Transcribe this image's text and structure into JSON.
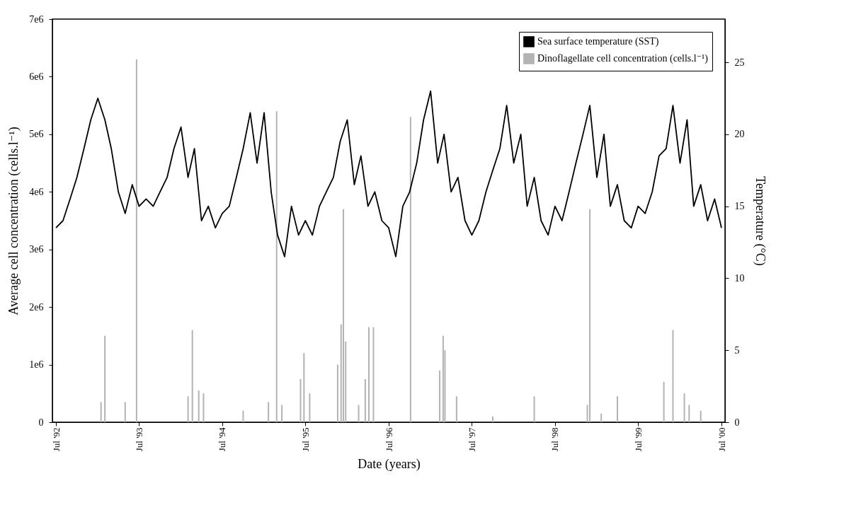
{
  "chart_data": {
    "type": "line",
    "xlabel": "Date (years)",
    "ylabel": "Average cell concentration (cells.l⁻¹)",
    "y2label": "Temperature (°C)",
    "xlim": [
      "1992-07-01",
      "2000-07-01"
    ],
    "xticks": [
      {
        "value": "1992-07-01",
        "label": "Jul '92"
      },
      {
        "value": "1993-07-01",
        "label": "Jul '93"
      },
      {
        "value": "1994-07-01",
        "label": "Jul '94"
      },
      {
        "value": "1995-07-01",
        "label": "Jul '95"
      },
      {
        "value": "1996-07-01",
        "label": "Jul '96"
      },
      {
        "value": "1997-07-01",
        "label": "Jul '97"
      },
      {
        "value": "1998-07-01",
        "label": "Jul '98"
      },
      {
        "value": "1999-07-01",
        "label": "Jul '99"
      },
      {
        "value": "2000-07-01",
        "label": "Jul '00"
      }
    ],
    "ylim": [
      0,
      7000000
    ],
    "yticks": [
      0,
      {
        "value": 1000000,
        "label": "1e6"
      },
      {
        "value": 2000000,
        "label": "2e6"
      },
      {
        "value": 3000000,
        "label": "3e6"
      },
      {
        "value": 4000000,
        "label": "4e6"
      },
      {
        "value": 5000000,
        "label": "5e6"
      },
      {
        "value": 6000000,
        "label": "6e6"
      },
      {
        "value": 7000000,
        "label": "7e6"
      }
    ],
    "y2lim": [
      0,
      28
    ],
    "y2ticks": [
      0,
      5,
      10,
      15,
      20,
      25
    ],
    "legend": "top right",
    "grid": false,
    "series": [
      {
        "name": "Sea surface temperature (SST)",
        "axis": "y2",
        "color": "#000000",
        "x": [
          "1992-07-01",
          "1992-08-01",
          "1992-09-01",
          "1992-10-01",
          "1992-11-01",
          "1992-12-01",
          "1993-01-01",
          "1993-02-01",
          "1993-03-01",
          "1993-04-01",
          "1993-05-01",
          "1993-06-01",
          "1993-07-01",
          "1993-08-01",
          "1993-09-01",
          "1993-10-01",
          "1993-11-01",
          "1993-12-01",
          "1994-01-01",
          "1994-02-01",
          "1994-03-01",
          "1994-04-01",
          "1994-05-01",
          "1994-06-01",
          "1994-07-01",
          "1994-08-01",
          "1994-09-01",
          "1994-10-01",
          "1994-11-01",
          "1994-12-01",
          "1995-01-01",
          "1995-02-01",
          "1995-03-01",
          "1995-04-01",
          "1995-05-01",
          "1995-06-01",
          "1995-07-01",
          "1995-08-01",
          "1995-09-01",
          "1995-10-01",
          "1995-11-01",
          "1995-12-01",
          "1996-01-01",
          "1996-02-01",
          "1996-03-01",
          "1996-04-01",
          "1996-05-01",
          "1996-06-01",
          "1996-07-01",
          "1996-08-01",
          "1996-09-01",
          "1996-10-01",
          "1996-11-01",
          "1996-12-01",
          "1997-01-01",
          "1997-02-01",
          "1997-03-01",
          "1997-04-01",
          "1997-05-01",
          "1997-06-01",
          "1997-07-01",
          "1997-08-01",
          "1997-09-01",
          "1997-10-01",
          "1997-11-01",
          "1997-12-01",
          "1998-01-01",
          "1998-02-01",
          "1998-03-01",
          "1998-04-01",
          "1998-05-01",
          "1998-06-01",
          "1998-07-01",
          "1998-08-01",
          "1998-09-01",
          "1998-10-01",
          "1998-11-01",
          "1998-12-01",
          "1999-01-01",
          "1999-02-01",
          "1999-03-01",
          "1999-04-01",
          "1999-05-01",
          "1999-06-01",
          "1999-07-01",
          "1999-08-01",
          "1999-09-01",
          "1999-10-01",
          "1999-11-01",
          "1999-12-01",
          "2000-01-01",
          "2000-02-01",
          "2000-03-01",
          "2000-04-01",
          "2000-05-01",
          "2000-06-01",
          "2000-07-01"
        ],
        "values": [
          13.5,
          14,
          15.5,
          17,
          19,
          21,
          22.5,
          21,
          19,
          16,
          14.5,
          16.5,
          15,
          15.5,
          15,
          16,
          17,
          19,
          20.5,
          17,
          19,
          14,
          15,
          13.5,
          14.5,
          15,
          17,
          19,
          21.5,
          18,
          21.5,
          16,
          13,
          11.5,
          15,
          13,
          14,
          13,
          15,
          16,
          17,
          19.5,
          21,
          16.5,
          18.5,
          15,
          16,
          14,
          13.5,
          11.5,
          15,
          16,
          18,
          21,
          23,
          18,
          20,
          16,
          17,
          14,
          13,
          14,
          16,
          17.5,
          19,
          22,
          18,
          20,
          15,
          17,
          14,
          13,
          15,
          14,
          16,
          18,
          20,
          22,
          17,
          20,
          15,
          16.5,
          14,
          13.5,
          15,
          14.5,
          16,
          18.5,
          19,
          22,
          18,
          21,
          15,
          16.5,
          14,
          15.5,
          13.5
        ]
      },
      {
        "name": "Dinoflagellate cell concentration (cells.l⁻¹)",
        "type": "bar",
        "color": "#b3b3b3",
        "x": [
          "1993-01-15",
          "1993-02-01",
          "1993-05-01",
          "1993-06-20",
          "1994-02-01",
          "1994-02-20",
          "1994-03-20",
          "1994-04-10",
          "1994-10-01",
          "1995-01-20",
          "1995-02-25",
          "1995-03-20",
          "1995-06-10",
          "1995-06-25",
          "1995-07-20",
          "1995-11-20",
          "1995-12-05",
          "1995-12-15",
          "1995-12-25",
          "1996-02-20",
          "1996-03-20",
          "1996-04-05",
          "1996-04-25",
          "1996-10-05",
          "1997-02-10",
          "1997-02-25",
          "1997-03-05",
          "1997-04-25",
          "1997-10-01",
          "1998-04-01",
          "1998-11-20",
          "1998-12-01",
          "1999-01-20",
          "1999-04-01",
          "1999-10-22",
          "1999-12-01",
          "2000-01-20",
          "2000-02-10",
          "2000-04-01"
        ],
        "values": [
          350000,
          1500000,
          350000,
          6300000,
          450000,
          1600000,
          550000,
          500000,
          200000,
          350000,
          5400000,
          300000,
          750000,
          1200000,
          500000,
          1000000,
          1700000,
          3700000,
          1400000,
          300000,
          750000,
          1650000,
          1650000,
          5300000,
          900000,
          1500000,
          1250000,
          450000,
          100000,
          450000,
          300000,
          3700000,
          150000,
          450000,
          700000,
          1600000,
          500000,
          300000,
          200000
        ]
      }
    ]
  }
}
